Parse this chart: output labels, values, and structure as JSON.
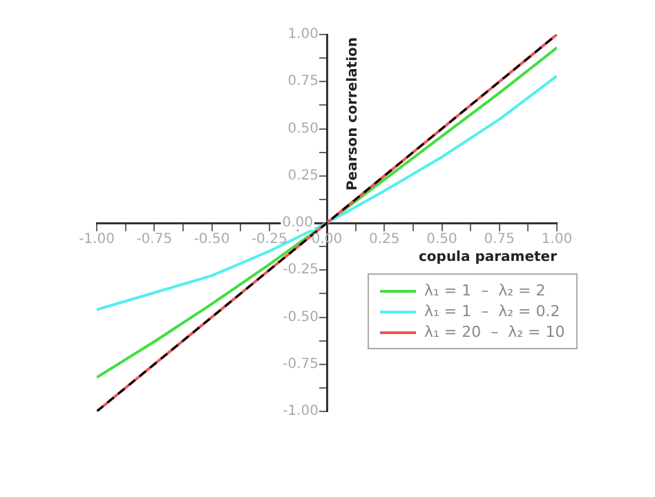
{
  "chart_data": {
    "type": "line",
    "xlabel": "copula parameter",
    "ylabel": "Pearson correlation",
    "x": [
      -1,
      -0.75,
      -0.5,
      -0.25,
      0,
      0.25,
      0.5,
      0.75,
      1
    ],
    "series": [
      {
        "name": "λ₁ = 1  –  λ₂ = 2",
        "color": "#44dd44",
        "values": [
          -0.82,
          -0.63,
          -0.43,
          -0.22,
          0,
          0.23,
          0.46,
          0.69,
          0.93
        ]
      },
      {
        "name": "λ₁ = 1  –  λ₂ = 0.2",
        "color": "#55eeee",
        "values": [
          -0.46,
          -0.37,
          -0.28,
          -0.15,
          0,
          0.17,
          0.35,
          0.55,
          0.78
        ]
      },
      {
        "name": "λ₁ = 20  –  λ₂ = 10",
        "color": "#ee5555",
        "values": [
          -1,
          -0.75,
          -0.5,
          -0.25,
          0,
          0.25,
          0.5,
          0.75,
          1
        ]
      },
      {
        "color": "#000000",
        "line_style": "dashed",
        "values": [
          -1,
          -0.75,
          -0.5,
          -0.25,
          0,
          0.25,
          0.5,
          0.75,
          1
        ]
      }
    ],
    "xlim": [
      -1,
      1
    ],
    "ylim": [
      -1,
      1
    ],
    "xticks": [
      {
        "value": -1,
        "label": "-1.00"
      },
      {
        "value": -0.875,
        "label": null
      },
      {
        "value": -0.75,
        "label": "-0.75"
      },
      {
        "value": -0.625,
        "label": null
      },
      {
        "value": -0.5,
        "label": "-0.50"
      },
      {
        "value": -0.375,
        "label": null
      },
      {
        "value": -0.25,
        "label": "-0.25"
      },
      {
        "value": -0.125,
        "label": null
      },
      {
        "value": 0,
        "label": "0.00"
      },
      {
        "value": 0.125,
        "label": null
      },
      {
        "value": 0.25,
        "label": "0.25"
      },
      {
        "value": 0.375,
        "label": null
      },
      {
        "value": 0.5,
        "label": "0.50"
      },
      {
        "value": 0.625,
        "label": null
      },
      {
        "value": 0.75,
        "label": "0.75"
      },
      {
        "value": 0.875,
        "label": null
      },
      {
        "value": 1,
        "label": "1.00"
      }
    ],
    "yticks": [
      {
        "value": -1,
        "label": "-1.00"
      },
      {
        "value": -0.875,
        "label": null
      },
      {
        "value": -0.75,
        "label": "-0.75"
      },
      {
        "value": -0.625,
        "label": null
      },
      {
        "value": -0.5,
        "label": "-0.50"
      },
      {
        "value": -0.375,
        "label": null
      },
      {
        "value": -0.25,
        "label": "-0.25"
      },
      {
        "value": -0.125,
        "label": null
      },
      {
        "value": 0,
        "label": "0.00"
      },
      {
        "value": 0.125,
        "label": null
      },
      {
        "value": 0.25,
        "label": "0.25"
      },
      {
        "value": 0.375,
        "label": null
      },
      {
        "value": 0.5,
        "label": "0.50"
      },
      {
        "value": 0.625,
        "label": null
      },
      {
        "value": 0.75,
        "label": "0.75"
      },
      {
        "value": 0.875,
        "label": null
      },
      {
        "value": 1,
        "label": "1.00"
      }
    ],
    "grid": false,
    "legend": "bottom right",
    "marker": "none"
  }
}
